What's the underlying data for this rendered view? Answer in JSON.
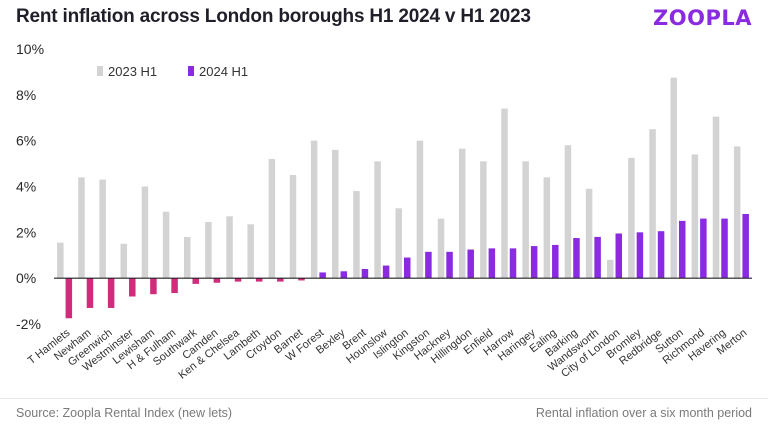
{
  "title": "Rent inflation across London boroughs H1 2024 v H1 2023",
  "brand": "ZOOPLA",
  "footer": {
    "source": "Source: Zoopla Rental Index (new lets)",
    "note": "Rental inflation over a six month period"
  },
  "colors": {
    "s2023": "#d3d3d3",
    "s2024_pos": "#8a2be2",
    "s2024_neg": "#d12c7c",
    "brand": "#8a2be2"
  },
  "chart_data": {
    "type": "bar",
    "title": "Rent inflation across London boroughs H1 2024 v H1 2023",
    "xlabel": "",
    "ylabel": "",
    "ylim": [
      -2,
      10
    ],
    "yticks": [
      "10%",
      "8%",
      "6%",
      "4%",
      "2%",
      "0%",
      "-2%"
    ],
    "ytick_values": [
      10,
      8,
      6,
      4,
      2,
      0,
      -2
    ],
    "legend": [
      "2023 H1",
      "2024 H1"
    ],
    "legend_position": "top-left",
    "categories": [
      "T Hamlets",
      "Newham",
      "Greenwich",
      "Westminster",
      "Lewisham",
      "H & Fulham",
      "Southwark",
      "Camden",
      "Ken & Chelsea",
      "Lambeth",
      "Croydon",
      "Barnet",
      "W Forest",
      "Bexley",
      "Brent",
      "Hounslow",
      "Islington",
      "Kingston",
      "Hackney",
      "Hillingdon",
      "Enfield",
      "Harrow",
      "Haringey",
      "Ealing",
      "Barking",
      "Wandsworth",
      "City of London",
      "Bromley",
      "Redbridge",
      "Sutton",
      "Richmond",
      "Havering",
      "Merton"
    ],
    "series": [
      {
        "name": "2023 H1",
        "values": [
          1.55,
          4.4,
          4.3,
          1.5,
          4.0,
          2.9,
          1.8,
          2.45,
          2.7,
          2.35,
          5.2,
          4.5,
          6.0,
          5.6,
          3.8,
          5.1,
          3.05,
          6.0,
          2.6,
          5.65,
          5.1,
          7.4,
          5.1,
          4.4,
          5.8,
          3.9,
          0.8,
          5.25,
          6.5,
          8.75,
          5.4,
          7.05,
          5.75
        ]
      },
      {
        "name": "2024 H1",
        "values": [
          -1.75,
          -1.3,
          -1.3,
          -0.8,
          -0.7,
          -0.65,
          -0.25,
          -0.2,
          -0.15,
          -0.15,
          -0.15,
          -0.1,
          0.25,
          0.3,
          0.4,
          0.55,
          0.9,
          1.15,
          1.15,
          1.25,
          1.3,
          1.3,
          1.4,
          1.45,
          1.75,
          1.8,
          1.95,
          2.0,
          2.05,
          2.5,
          2.6,
          2.6,
          2.8
        ]
      }
    ]
  }
}
